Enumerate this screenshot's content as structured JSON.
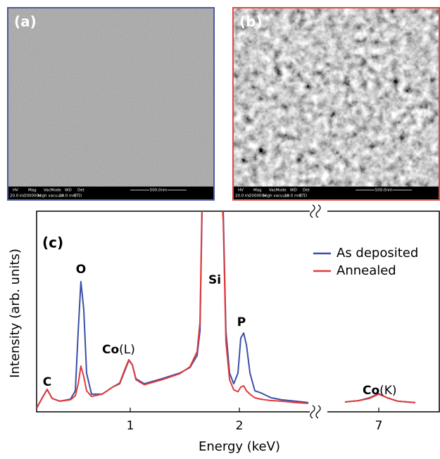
{
  "panels": [
    {
      "label": "(a)",
      "border": "#4a5aa8",
      "style": "smooth"
    },
    {
      "label": "(b)",
      "border": "#e04848",
      "style": "grainy"
    }
  ],
  "info_bar": {
    "headers": [
      "HV",
      "Mag",
      "VacMode",
      "WD",
      "Det"
    ],
    "values": [
      "20.0 kV",
      "200000x",
      "High vacuum",
      "10.0 mm",
      "ETD"
    ],
    "scale": "500.0nm"
  },
  "chart_data": {
    "type": "line",
    "panel_label": "(c)",
    "xlabel": "Energy (keV)",
    "ylabel": "Intensity (arb. units)",
    "x_segments": [
      [
        0.142,
        2.645
      ],
      [
        6.53,
        7.56
      ]
    ],
    "xticks": [
      1,
      2,
      7
    ],
    "ylim": [
      0,
      100
    ],
    "legend": "upper right",
    "x": [
      0.142,
      0.194,
      0.239,
      0.284,
      0.355,
      0.452,
      0.497,
      0.523,
      0.548,
      0.574,
      0.6,
      0.645,
      0.742,
      0.839,
      0.903,
      0.955,
      0.987,
      1.019,
      1.052,
      1.129,
      1.29,
      1.452,
      1.548,
      1.613,
      1.639,
      1.658,
      1.755,
      1.852,
      1.877,
      1.91,
      1.948,
      1.987,
      2.013,
      2.039,
      2.065,
      2.097,
      2.142,
      2.194,
      2.29,
      2.387,
      2.516,
      2.632,
      6.529,
      6.69,
      6.819,
      6.916,
      7.0,
      7.077,
      7.174,
      7.335,
      7.561
    ],
    "series": [
      {
        "name": "As deposited",
        "color": "#3b4fa8",
        "values": [
          1.8,
          7.0,
          11.2,
          6.7,
          5.3,
          6.3,
          10.5,
          40.4,
          64.9,
          50.9,
          19.3,
          8.8,
          8.8,
          12.3,
          14.0,
          21.1,
          25.6,
          23.5,
          16.5,
          14.0,
          16.5,
          19.3,
          22.1,
          28.1,
          40.4,
          100,
          180,
          100,
          40.4,
          19.3,
          14.0,
          19.3,
          36.8,
          39.3,
          33.3,
          19.3,
          10.5,
          9.5,
          7.0,
          6.0,
          5.3,
          4.6,
          4.6,
          4.9,
          5.6,
          7.0,
          9.1,
          7.0,
          5.3,
          4.6,
          4.2
        ]
      },
      {
        "name": "Annealed",
        "color": "#e23a3a",
        "values": [
          1.8,
          7.0,
          11.2,
          6.7,
          5.3,
          6.0,
          8.0,
          14.0,
          22.8,
          17.5,
          10.5,
          7.7,
          8.8,
          12.3,
          14.4,
          21.8,
          26.0,
          23.5,
          16.0,
          13.5,
          16.0,
          19.0,
          22.5,
          30.0,
          45.0,
          105,
          180,
          95,
          35.0,
          16.0,
          11.0,
          10.0,
          12.3,
          13.0,
          10.5,
          8.8,
          7.0,
          6.3,
          5.6,
          5.3,
          4.6,
          4.2,
          4.6,
          4.9,
          5.6,
          6.7,
          8.8,
          7.0,
          5.3,
          4.6,
          4.2
        ]
      }
    ],
    "annotations": [
      {
        "text": "C"
      },
      {
        "text": "O"
      },
      {
        "text": "Co",
        "suffix": "(L)"
      },
      {
        "text": "Si"
      },
      {
        "text": "P"
      },
      {
        "text": "Co",
        "suffix": "(K)"
      }
    ]
  }
}
